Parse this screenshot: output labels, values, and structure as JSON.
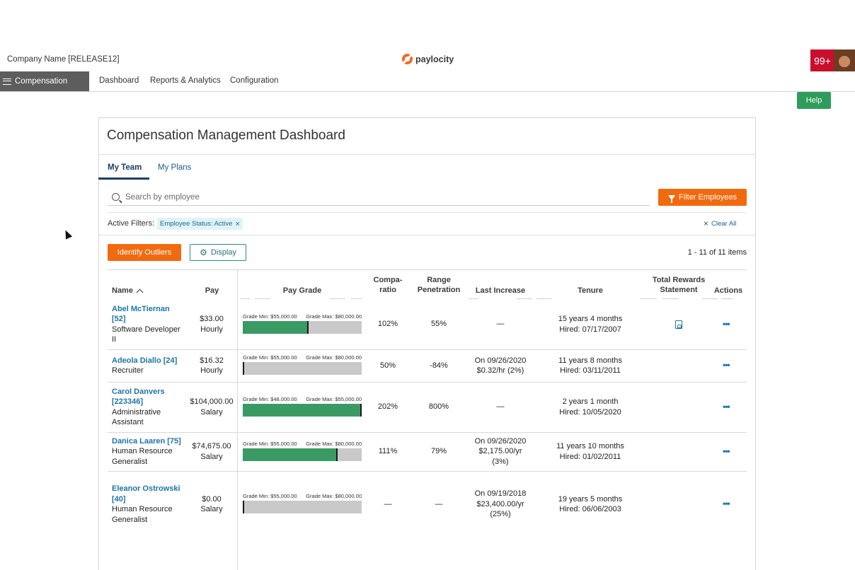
{
  "header": {
    "company": "Company Name [RELEASE12]",
    "brand": "paylocity",
    "notifications": "99+"
  },
  "nav": {
    "module": "Compensation",
    "links": [
      "Dashboard",
      "Reports & Analytics",
      "Configuration"
    ],
    "help": "Help"
  },
  "dashboard": {
    "title": "Compensation Management Dashboard",
    "tabs": [
      {
        "label": "My Team",
        "active": true
      },
      {
        "label": "My Plans",
        "active": false
      }
    ],
    "search_placeholder": "Search by employee",
    "filter_button": "Filter Employees",
    "active_filters_label": "Active Filters:",
    "filter_chip": "Employee Status: Active",
    "clear_all": "Clear All",
    "identify_outliers": "Identify Outliers",
    "display": "Display",
    "item_count": "1 - 11 of 11 items"
  },
  "table": {
    "headers": {
      "name": "Name",
      "pay": "Pay",
      "pay_grade": "Pay Grade",
      "compa_1": "Compa-",
      "compa_2": "ratio",
      "range_1": "Range",
      "range_2": "Penetration",
      "last_increase": "Last Increase",
      "tenure": "Tenure",
      "trs_1": "Total Rewards",
      "trs_2": "Statement",
      "actions": "Actions"
    },
    "rows": [
      {
        "name_lines": [
          "Abel McTiernan",
          "[52]"
        ],
        "title_lines": [
          "Software Developer",
          "II"
        ],
        "pay": "$33.00",
        "pay_type": "Hourly",
        "grade_min": "Grade Min: $55,000.00",
        "grade_max": "Grade Max: $80,000.00",
        "grade_position": 0.55,
        "compa": "102%",
        "range": "55%",
        "last_increase_lines": [
          "—"
        ],
        "tenure": "15 years 4 months",
        "hired": "Hired: 07/17/2007",
        "has_statement": true,
        "actions": "•••"
      },
      {
        "name_lines": [
          "Adeola Diallo [24]"
        ],
        "title_lines": [
          "Recruiter"
        ],
        "pay": "$16.32",
        "pay_type": "Hourly",
        "grade_min": "Grade Min: $55,000.00",
        "grade_max": "Grade Max: $80,000.00",
        "grade_position": 0,
        "compa": "50%",
        "range": "-84%",
        "last_increase_lines": [
          "On 09/26/2020",
          "$0.32/hr (2%)"
        ],
        "tenure": "11 years 8 months",
        "hired": "Hired: 03/11/2011",
        "has_statement": false,
        "actions": "•••"
      },
      {
        "name_lines": [
          "Carol Danvers",
          "[223346]"
        ],
        "title_lines": [
          "Administrative",
          "Assistant"
        ],
        "pay": "$104,000.00",
        "pay_type": "Salary",
        "grade_min": "Grade Min: $48,000.00",
        "grade_max": "Grade Max: $55,000.00",
        "grade_position": 1,
        "compa": "202%",
        "range": "800%",
        "last_increase_lines": [
          "—"
        ],
        "tenure": "2 years 1 month",
        "hired": "Hired: 10/05/2020",
        "has_statement": false,
        "actions": "•••"
      },
      {
        "name_lines": [
          "Danica Laaren [75]"
        ],
        "title_lines": [
          "Human Resource",
          "Generalist"
        ],
        "pay": "$74,675.00",
        "pay_type": "Salary",
        "grade_min": "Grade Min: $55,000.00",
        "grade_max": "Grade Max: $80,000.00",
        "grade_position": 0.79,
        "compa": "111%",
        "range": "79%",
        "last_increase_lines": [
          "On 09/26/2020",
          "$2,175.00/yr",
          "(3%)"
        ],
        "tenure": "11 years 10 months",
        "hired": "Hired: 01/02/2011",
        "has_statement": false,
        "actions": "•••"
      },
      {
        "name_lines": [
          "Eleanor Ostrowski",
          "[40]"
        ],
        "title_lines": [
          "Human Resource",
          "Generalist"
        ],
        "pay": "$0.00",
        "pay_type": "Salary",
        "grade_min": "Grade Min: $55,000.00",
        "grade_max": "Grade Max: $80,000.00",
        "grade_position": 0,
        "compa": "—",
        "range": "—",
        "last_increase_lines": [
          "On 09/19/2018",
          "$23,400.00/yr",
          "(25%)"
        ],
        "tenure": "19 years 5 months",
        "hired": "Hired: 06/06/2003",
        "has_statement": false,
        "actions": "•••"
      }
    ]
  },
  "colors": {
    "accent_orange": "#f26a0f",
    "help_green": "#2f9c5c",
    "grade_fill": "#3a9a64",
    "link_blue": "#1f74a6"
  }
}
